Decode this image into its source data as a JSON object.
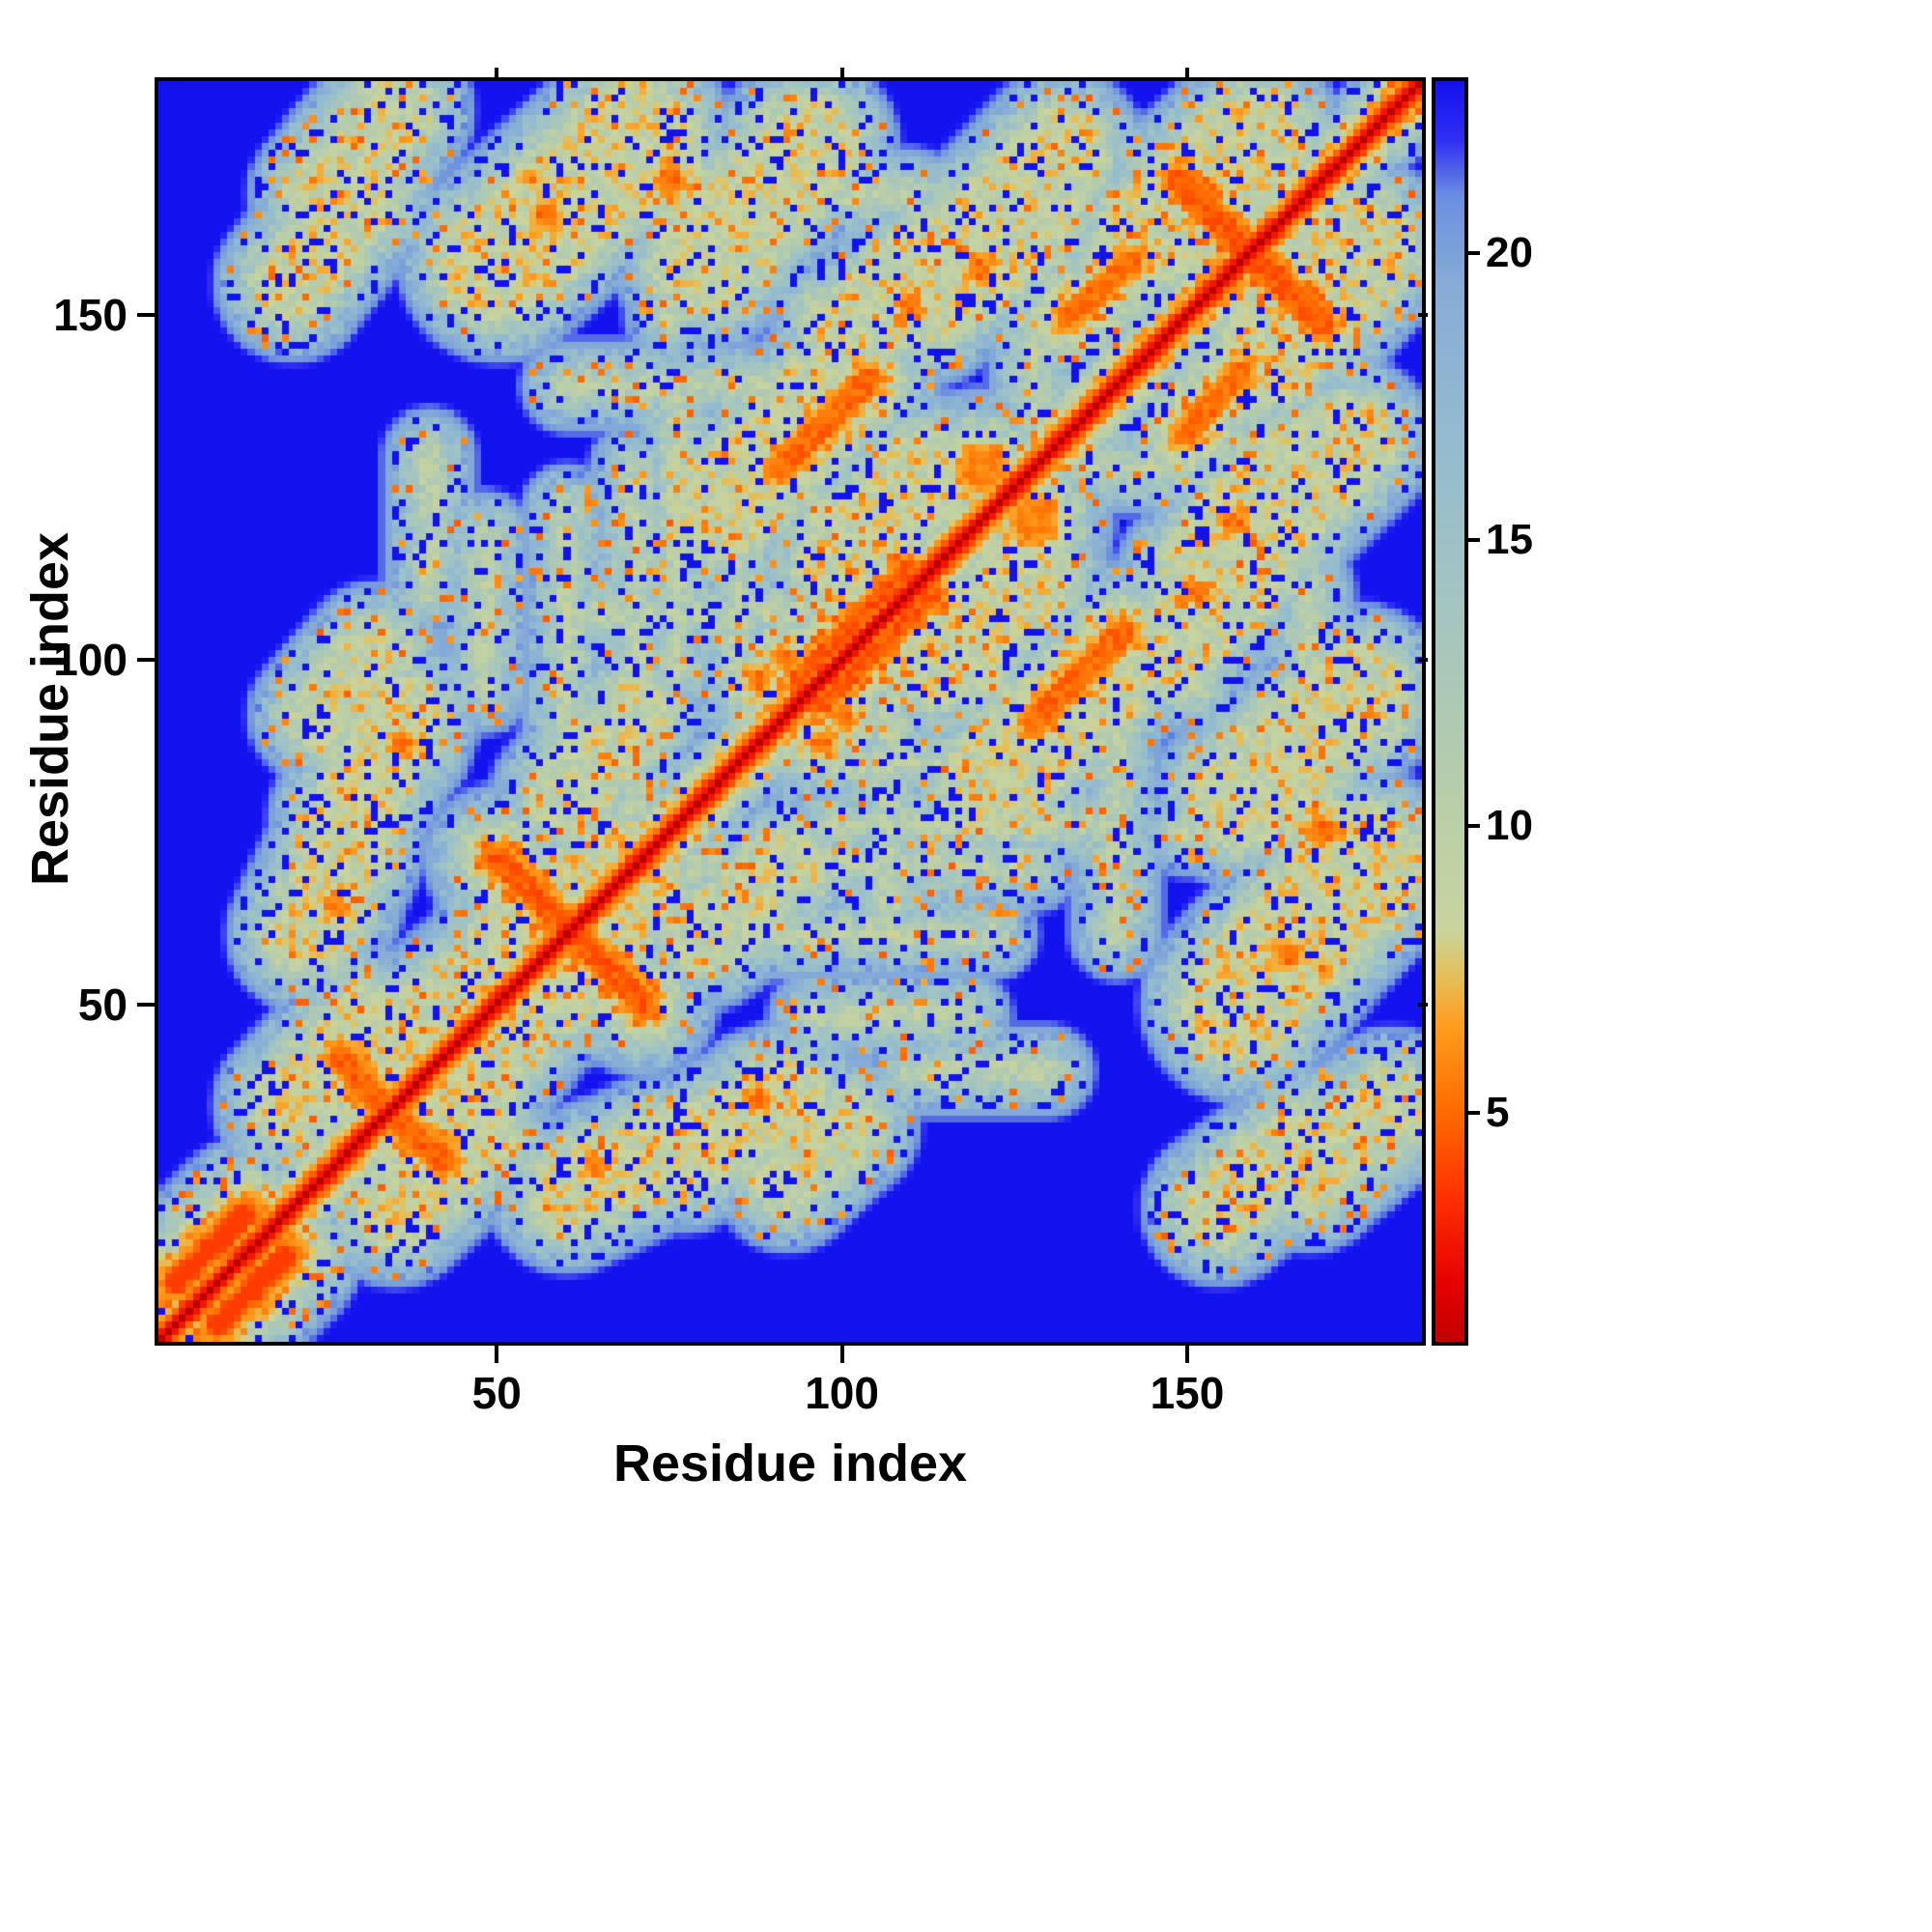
{
  "figure": {
    "title": "",
    "description": "Symmetric residue-residue distance heatmap with red diagonal (short distances), orange/green contact clusters and blue background (long distances)"
  },
  "chart_data": {
    "type": "heatmap",
    "title": "",
    "xlabel": "Residue index",
    "ylabel": "Residue index",
    "x_range": [
      1,
      184
    ],
    "y_range": [
      1,
      184
    ],
    "x_ticks": [
      50,
      100,
      150
    ],
    "y_ticks": [
      50,
      100,
      150
    ],
    "grid": false,
    "legend": "none",
    "colorbar": {
      "position": "right",
      "ticks": [
        5,
        10,
        15,
        20
      ],
      "vmin": 1,
      "vmax": 23
    },
    "colormap_stops": [
      [
        0.6,
        "#b40000"
      ],
      [
        2.0,
        "#e60000"
      ],
      [
        3.5,
        "#ff3000"
      ],
      [
        5.0,
        "#ff6a00"
      ],
      [
        6.5,
        "#ff9d1e"
      ],
      [
        7.4,
        "#e4c05c"
      ],
      [
        8.2,
        "#c9d49e"
      ],
      [
        10.0,
        "#bccfa6"
      ],
      [
        12.0,
        "#aec9b4"
      ],
      [
        14.5,
        "#a0c3c4"
      ],
      [
        17.0,
        "#92bad0"
      ],
      [
        19.5,
        "#85acd6"
      ],
      [
        21.0,
        "#6b8fe0"
      ],
      [
        22.0,
        "#2e2ef4"
      ],
      [
        23.0,
        "#1212ee"
      ]
    ],
    "background_value": 23,
    "matrix_size": 184,
    "symmetric": true,
    "diagonal": {
      "core_value": 0.8,
      "slope_per_offset": 1.9
    },
    "feature_slope": 1.7,
    "noise": {
      "speckle_orange_p": 0.07,
      "hole_p": 0.1,
      "mottle_amp": 2.6
    },
    "features": [
      [
        3,
        9,
        13,
        19,
        1.0,
        3.8
      ],
      [
        27,
        42,
        38,
        30,
        1.2,
        4.8
      ],
      [
        50,
        71,
        71,
        50,
        1.3,
        4.6
      ],
      [
        149,
        170,
        170,
        149,
        1.3,
        4.6
      ],
      [
        91,
        128,
        104,
        141,
        1.3,
        5.0
      ],
      [
        133,
        150,
        142,
        158,
        1.2,
        5.2
      ],
      [
        95,
        97,
        110,
        112,
        2.0,
        4.5
      ],
      [
        20,
        35,
        31,
        47,
        4.5,
        9.0
      ],
      [
        34,
        44,
        45,
        53,
        3.5,
        9.2
      ],
      [
        22,
        60,
        28,
        73,
        4.5,
        9.0
      ],
      [
        28,
        77,
        36,
        92,
        4.5,
        9.0
      ],
      [
        24,
        92,
        32,
        101,
        3.5,
        9.3
      ],
      [
        20,
        155,
        30,
        168,
        4.5,
        9.3
      ],
      [
        25,
        168,
        35,
        180,
        4.5,
        9.2
      ],
      [
        50,
        158,
        70,
        176,
        7.5,
        9.0
      ],
      [
        52,
        58,
        68,
        70,
        5.5,
        9.0
      ],
      [
        82,
        122,
        100,
        140,
        6.5,
        9.4
      ],
      [
        80,
        158,
        95,
        175,
        6.5,
        9.4
      ],
      [
        100,
        115,
        112,
        127,
        5.5,
        9.2
      ],
      [
        113,
        100,
        124,
        111,
        4.5,
        9.2
      ],
      [
        112,
        152,
        128,
        164,
        5.5,
        9.4
      ],
      [
        145,
        162,
        160,
        176,
        6.5,
        9.2
      ],
      [
        148,
        102,
        162,
        118,
        5.5,
        9.2
      ],
      [
        160,
        118,
        174,
        132,
        5.5,
        9.2
      ],
      [
        80,
        60,
        92,
        70,
        4.5,
        9.6
      ],
      [
        120,
        128,
        120,
        128,
        3.0,
        6.0
      ],
      [
        26,
        64,
        26,
        64,
        1.0,
        5.5
      ],
      [
        36,
        88,
        36,
        88,
        1.0,
        5.3
      ],
      [
        57,
        165,
        57,
        165,
        1.2,
        5.2
      ],
      [
        75,
        170,
        75,
        170,
        1.2,
        5.0
      ],
      [
        88,
        97,
        88,
        97,
        1.0,
        5.5
      ],
      [
        120,
        157,
        120,
        157,
        1.0,
        5.2
      ],
      [
        152,
        110,
        152,
        110,
        1.0,
        5.4
      ],
      [
        100,
        92,
        100,
        92,
        1.0,
        5.3
      ],
      [
        70,
        78,
        70,
        128,
        0.6,
        10.5
      ],
      [
        76,
        98,
        76,
        140,
        0.6,
        10.5
      ],
      [
        95,
        85,
        130,
        85,
        0.6,
        10.5
      ],
      [
        120,
        96,
        152,
        96,
        0.6,
        10.5
      ],
      [
        107,
        62,
        107,
        94,
        0.6,
        10.5
      ],
      [
        82,
        60,
        110,
        60,
        0.6,
        10.5
      ],
      [
        60,
        140,
        80,
        140,
        0.6,
        10.5
      ],
      [
        128,
        136,
        128,
        150,
        0.6,
        10.5
      ],
      [
        95,
        168,
        110,
        168,
        0.6,
        10.5
      ],
      [
        140,
        64,
        140,
        92,
        0.6,
        10.8
      ],
      [
        150,
        75,
        178,
        75,
        0.6,
        10.8
      ],
      [
        40,
        110,
        40,
        130,
        0.6,
        10.5
      ],
      [
        48,
        96,
        48,
        118,
        0.6,
        10.5
      ],
      [
        60,
        100,
        60,
        122,
        0.6,
        10.8
      ]
    ]
  },
  "axes": {
    "x_title": "Residue index",
    "y_title": "Residue index"
  }
}
